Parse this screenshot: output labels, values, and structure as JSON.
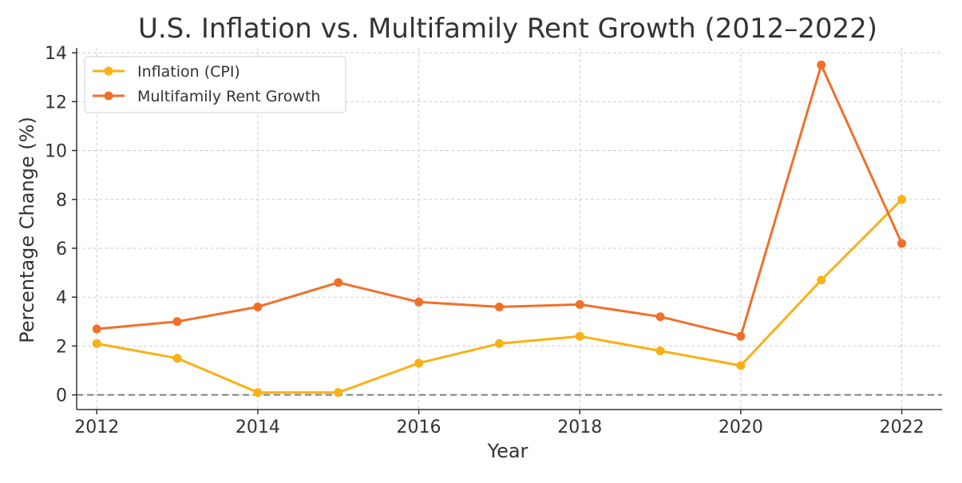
{
  "chart_data": {
    "type": "line",
    "title": "U.S. Inflation vs. Multifamily Rent Growth (2012–2022)",
    "xlabel": "Year",
    "ylabel": "Percentage Change (%)",
    "x": [
      2012,
      2013,
      2014,
      2015,
      2016,
      2017,
      2018,
      2019,
      2020,
      2021,
      2022
    ],
    "x_ticks": [
      2012,
      2014,
      2016,
      2018,
      2020,
      2022
    ],
    "y_ticks": [
      0,
      2,
      4,
      6,
      8,
      10,
      12,
      14
    ],
    "xlim": [
      2011.75,
      2022.5
    ],
    "ylim": [
      -0.6,
      14.2
    ],
    "grid": true,
    "reference_line": {
      "y": 0,
      "style": "dashed",
      "color": "#808080"
    },
    "legend_position": "top-left",
    "series": [
      {
        "name": "Inflation (CPI)",
        "color": "#F9B115",
        "values": [
          2.1,
          1.5,
          0.1,
          0.1,
          1.3,
          2.1,
          2.4,
          1.8,
          1.2,
          4.7,
          8.0
        ]
      },
      {
        "name": "Multifamily Rent Growth",
        "color": "#F0702A",
        "values": [
          2.7,
          3.0,
          3.6,
          4.6,
          3.8,
          3.6,
          3.7,
          3.2,
          2.4,
          13.5,
          6.2
        ]
      }
    ]
  }
}
